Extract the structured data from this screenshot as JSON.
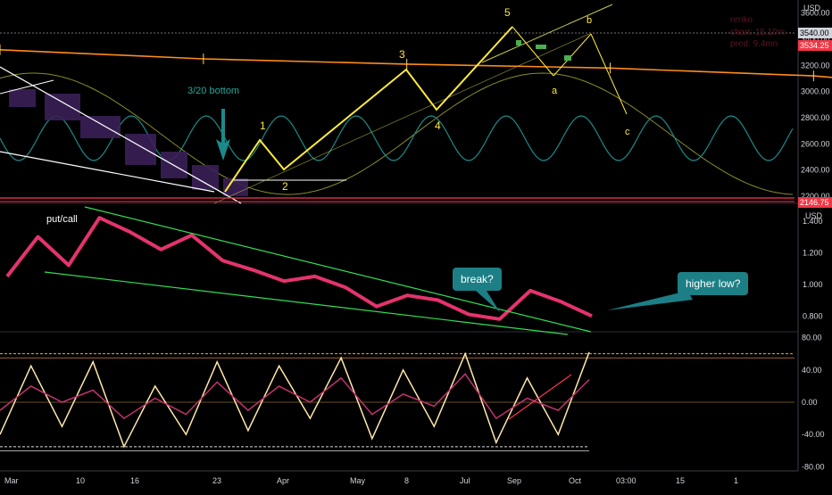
{
  "colors": {
    "background": "#000000",
    "price_candles": "#ff8c1a",
    "renko_boxes": "#3a2057",
    "elliott": "#ffeb3b",
    "cycle_fast": "#1d8a8a",
    "cycle_slow": "#8b8b2a",
    "trendline_white": "#ffffff",
    "support_red": "#ff3355",
    "putcall": "#e5336d",
    "putcall_channel": "#33dd55",
    "callout_bg": "#1c7f86",
    "osc_fast": "#ffe9a8",
    "osc_slow": "#c3326e",
    "osc_signal": "#66ff55",
    "osc_upper_band": "#ff9f40"
  },
  "axis": {
    "currency_top": "USD",
    "currency_mid": "USD",
    "price_ticks": [
      "3400.00",
      "3200.00",
      "3000.00",
      "2800.00",
      "2600.00",
      "2400.00",
      "3600.00",
      "2200.00"
    ],
    "price_badges": {
      "last": "3540.00",
      "current": "3534.25",
      "support": "2146.75"
    },
    "putcall_ticks": [
      "1.400",
      "1.200",
      "1.000",
      "0.800"
    ],
    "osc_ticks": [
      "80.00",
      "40.00",
      "0.00",
      "-40.00",
      "-80.00"
    ],
    "x_ticks": [
      "Mar",
      "10",
      "16",
      "23",
      "Apr",
      "May",
      "8",
      "Jul",
      "Sep",
      "Oct",
      "03:00",
      "15",
      "1"
    ]
  },
  "overlay_text": {
    "line1": "renko",
    "line2": "chart: 15.10m",
    "line3": "pred: 9.4mn"
  },
  "wave_labels": {
    "w1": "1",
    "w2": "2",
    "w3": "3",
    "w4": "4",
    "w5": "5",
    "wa": "a",
    "wb": "b",
    "wc": "c"
  },
  "annotations": {
    "bottom": "3/20 bottom",
    "putcall_label": "put/call",
    "break": "break?",
    "higher_low": "higher low?"
  },
  "chart_data": [
    {
      "type": "line",
      "title": "",
      "ylabel": "USD",
      "ylim": [
        2146,
        3700
      ],
      "x": [
        0,
        4,
        8,
        12,
        16,
        20,
        24,
        28,
        32,
        36,
        40,
        44,
        48,
        52,
        56,
        60,
        64,
        68,
        72,
        76,
        80,
        84,
        88,
        92,
        96,
        100
      ],
      "series": [
        {
          "values": [
            3320,
            3250,
            3210,
            3180,
            3120,
            2990,
            2860,
            2740,
            2620,
            2530,
            2420,
            2330,
            2260,
            2450,
            2600,
            2700,
            2690,
            2820,
            2940,
            3040,
            2980,
            3100,
            3160,
            3220,
            3350,
            3540
          ]
        },
        {
          "values": [
            null,
            null,
            null,
            null,
            null,
            null,
            null,
            null,
            null,
            null,
            null,
            null,
            null,
            null,
            null,
            null,
            null,
            null,
            null,
            null,
            null,
            null,
            null,
            null,
            null,
            null
          ]
        }
      ],
      "waves": [
        {
          "label": "1",
          "x": 31,
          "y": 2680
        },
        {
          "label": "2",
          "x": 34,
          "y": 2420
        },
        {
          "label": "3",
          "x": 50,
          "y": 3250
        },
        {
          "label": "4",
          "x": 54,
          "y": 2950
        },
        {
          "label": "5",
          "x": 64,
          "y": 3570
        },
        {
          "label": "a",
          "x": 69,
          "y": 3240
        },
        {
          "label": "b",
          "x": 74,
          "y": 3520
        },
        {
          "label": "c",
          "x": 78,
          "y": 2980
        }
      ],
      "support_level": 2146.75
    },
    {
      "type": "line",
      "title": "",
      "ylabel": "USD",
      "ylim": [
        0.7,
        1.5
      ],
      "x": [
        0,
        4,
        8,
        12,
        16,
        20,
        24,
        28,
        32,
        36,
        40,
        44,
        48,
        52,
        56,
        60,
        64,
        68,
        72,
        76
      ],
      "series": [
        {
          "values": [
            1.05,
            1.3,
            1.12,
            1.42,
            1.33,
            1.22,
            1.31,
            1.15,
            1.09,
            1.02,
            1.05,
            0.98,
            0.86,
            0.93,
            0.9,
            0.81,
            0.78,
            0.96,
            0.89,
            0.8
          ]
        }
      ]
    },
    {
      "type": "line",
      "title": "",
      "ylim": [
        -85,
        85
      ],
      "x": [
        0,
        4,
        8,
        12,
        16,
        20,
        24,
        28,
        32,
        36,
        40,
        44,
        48,
        52,
        56,
        60,
        64,
        68,
        72,
        76
      ],
      "series": [
        {
          "values": [
            -40,
            45,
            -30,
            50,
            -55,
            20,
            -40,
            50,
            -35,
            45,
            -20,
            55,
            -45,
            40,
            -30,
            60,
            -50,
            30,
            -40,
            62
          ]
        },
        {
          "values": [
            -10,
            20,
            0,
            15,
            -20,
            5,
            -15,
            25,
            -10,
            20,
            0,
            30,
            -15,
            10,
            -5,
            35,
            -20,
            5,
            -10,
            28
          ]
        }
      ]
    }
  ]
}
